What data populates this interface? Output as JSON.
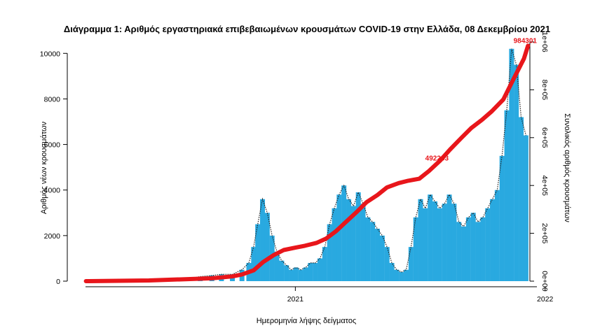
{
  "chart_data": {
    "type": "bar",
    "title": "Διάγραμμα 1: Αριθμός εργαστηριακά επιβεβαιωμένων κρουσμάτων COVID-19 στην Ελλάδα, 08 Δεκεμβρίου 2021",
    "xlabel": "Ημερομηνία λήψης δείγματος",
    "ylabel": "Αριθμός νέων κρουσμάτων",
    "y2label": "Συνολικός αριθμός κρουσμάτων",
    "xlim": [
      "2020-02-15",
      "2021-12-20"
    ],
    "x_ticks": [
      {
        "date": "2021-01-01",
        "label": "2021"
      },
      {
        "date": "2022-01-01",
        "label": "2022"
      }
    ],
    "ylim": [
      0,
      10500
    ],
    "y_ticks": [
      0,
      2000,
      4000,
      6000,
      8000,
      10000
    ],
    "y2lim": [
      0,
      1000000
    ],
    "y2_ticks": [
      {
        "value": 0,
        "label": "0e+00"
      },
      {
        "value": 200000,
        "label": "2e+05"
      },
      {
        "value": 400000,
        "label": "4e+05"
      },
      {
        "value": 600000,
        "label": "6e+05"
      },
      {
        "value": 800000,
        "label": "8e+05"
      },
      {
        "value": 1000000,
        "label": "1e+06"
      }
    ],
    "colors": {
      "bars": "#29a9e0",
      "daily_marks": "#222222",
      "cumulative": "#e8161b"
    },
    "grid": false,
    "series": [
      {
        "type": "bar",
        "axis": "left",
        "dates": [
          "2020-03-15",
          "2020-04-15",
          "2020-05-15",
          "2020-06-15",
          "2020-07-15",
          "2020-08-15",
          "2020-09-01",
          "2020-09-15",
          "2020-10-01",
          "2020-10-15",
          "2020-10-25",
          "2020-11-01",
          "2020-11-07",
          "2020-11-14",
          "2020-11-21",
          "2020-11-28",
          "2020-12-05",
          "2020-12-12",
          "2020-12-19",
          "2020-12-26",
          "2021-01-02",
          "2021-01-09",
          "2021-01-16",
          "2021-01-23",
          "2021-01-30",
          "2021-02-06",
          "2021-02-13",
          "2021-02-20",
          "2021-02-27",
          "2021-03-06",
          "2021-03-13",
          "2021-03-20",
          "2021-03-27",
          "2021-04-03",
          "2021-04-10",
          "2021-04-17",
          "2021-04-24",
          "2021-05-01",
          "2021-05-08",
          "2021-05-15",
          "2021-05-22",
          "2021-05-29",
          "2021-06-05",
          "2021-06-12",
          "2021-06-19",
          "2021-06-26",
          "2021-07-03",
          "2021-07-10",
          "2021-07-17",
          "2021-07-24",
          "2021-07-31",
          "2021-08-07",
          "2021-08-14",
          "2021-08-21",
          "2021-08-28",
          "2021-09-04",
          "2021-09-11",
          "2021-09-18",
          "2021-09-25",
          "2021-10-02",
          "2021-10-09",
          "2021-10-16",
          "2021-10-23",
          "2021-10-30",
          "2021-11-06",
          "2021-11-13",
          "2021-11-20",
          "2021-11-27",
          "2021-12-04"
        ],
        "values": [
          60,
          40,
          20,
          20,
          30,
          200,
          250,
          300,
          300,
          500,
          800,
          1500,
          2500,
          3600,
          3000,
          2000,
          1300,
          900,
          700,
          500,
          600,
          500,
          600,
          800,
          800,
          1000,
          1500,
          2500,
          3200,
          3800,
          4200,
          3600,
          3300,
          3900,
          3400,
          2800,
          2600,
          2300,
          2000,
          1500,
          800,
          500,
          400,
          500,
          1500,
          2800,
          3600,
          3200,
          3800,
          3500,
          3200,
          3400,
          3800,
          3400,
          2600,
          2400,
          2800,
          3000,
          2600,
          2800,
          3200,
          3600,
          4000,
          5500,
          7500,
          10200,
          9500,
          7200,
          6400
        ]
      },
      {
        "type": "line",
        "axis": "right",
        "dates": [
          "2020-03-01",
          "2020-06-01",
          "2020-09-01",
          "2020-10-01",
          "2020-10-15",
          "2020-11-01",
          "2020-11-15",
          "2020-12-01",
          "2020-12-15",
          "2021-01-01",
          "2021-01-15",
          "2021-02-01",
          "2021-02-15",
          "2021-03-01",
          "2021-03-15",
          "2021-04-01",
          "2021-04-15",
          "2021-05-01",
          "2021-05-15",
          "2021-06-01",
          "2021-06-15",
          "2021-07-01",
          "2021-07-15",
          "2021-08-01",
          "2021-08-15",
          "2021-09-01",
          "2021-09-15",
          "2021-10-01",
          "2021-10-15",
          "2021-11-01",
          "2021-11-15",
          "2021-12-01",
          "2021-12-07"
        ],
        "values": [
          0,
          3000,
          12000,
          20000,
          28000,
          45000,
          80000,
          110000,
          130000,
          140000,
          148000,
          160000,
          178000,
          208000,
          245000,
          290000,
          330000,
          360000,
          392000,
          410000,
          420000,
          428000,
          460000,
          505000,
          550000,
          600000,
          640000,
          675000,
          710000,
          760000,
          840000,
          930000,
          984301
        ]
      }
    ],
    "annotations": [
      {
        "text": "984301",
        "date": "2021-12-07",
        "value": 984301
      },
      {
        "text": "492233",
        "date": "2021-07-31",
        "value": 492233
      }
    ]
  }
}
